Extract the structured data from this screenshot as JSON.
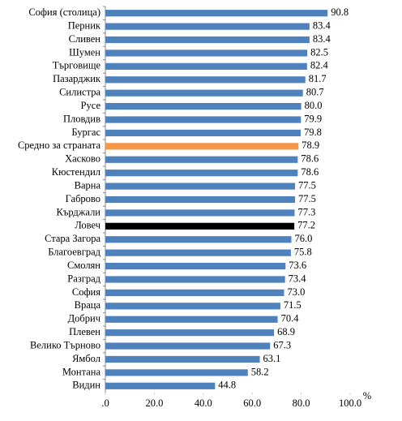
{
  "chart_data": {
    "type": "bar",
    "orientation": "horizontal",
    "categories": [
      "София (столица)",
      "Перник",
      "Сливен",
      "Шумен",
      "Търговище",
      "Пазарджик",
      "Силистра",
      "Русе",
      "Пловдив",
      "Бургас",
      "Средно за страната",
      "Хасково",
      "Кюстендил",
      "Варна",
      "Габрово",
      "Кърджали",
      "Ловеч",
      "Стара Загора",
      "Благоевград",
      "Смолян",
      "Разград",
      "София",
      "Враца",
      "Добрич",
      "Плевен",
      "Велико Търново",
      "Ямбол",
      "Монтана",
      "Видин"
    ],
    "values": [
      90.8,
      83.4,
      83.4,
      82.5,
      82.4,
      81.7,
      80.7,
      80.0,
      79.9,
      79.8,
      78.9,
      78.6,
      78.6,
      77.5,
      77.5,
      77.3,
      77.2,
      76.0,
      75.8,
      73.6,
      73.4,
      73.0,
      71.5,
      70.4,
      68.9,
      67.3,
      63.1,
      58.2,
      44.8
    ],
    "value_labels": [
      "90.8",
      "83.4",
      "83.4",
      "82.5",
      "82.4",
      "81.7",
      "80.7",
      "80.0",
      "79.9",
      "79.8",
      "78.9",
      "78.6",
      "78.6",
      "77.5",
      "77.5",
      "77.3",
      "77.2",
      "76.0",
      "75.8",
      "73.6",
      "73.4",
      "73.0",
      "71.5",
      "70.4",
      "68.9",
      "67.3",
      "63.1",
      "58.2",
      "44.8"
    ],
    "colors": [
      "#4f81bd",
      "#4f81bd",
      "#4f81bd",
      "#4f81bd",
      "#4f81bd",
      "#4f81bd",
      "#4f81bd",
      "#4f81bd",
      "#4f81bd",
      "#4f81bd",
      "#f79646",
      "#4f81bd",
      "#4f81bd",
      "#4f81bd",
      "#4f81bd",
      "#4f81bd",
      "#000000",
      "#4f81bd",
      "#4f81bd",
      "#4f81bd",
      "#4f81bd",
      "#4f81bd",
      "#4f81bd",
      "#4f81bd",
      "#4f81bd",
      "#4f81bd",
      "#4f81bd",
      "#4f81bd",
      "#4f81bd"
    ],
    "xlabel": "%",
    "xlim": [
      0,
      100
    ],
    "xticks": [
      {
        "value": 0,
        "label": ".0"
      },
      {
        "value": 20,
        "label": "20.0"
      },
      {
        "value": 40,
        "label": "40.0"
      },
      {
        "value": 60,
        "label": "60.0"
      },
      {
        "value": 80,
        "label": "80.0"
      },
      {
        "value": 100,
        "label": "100.0"
      }
    ]
  }
}
